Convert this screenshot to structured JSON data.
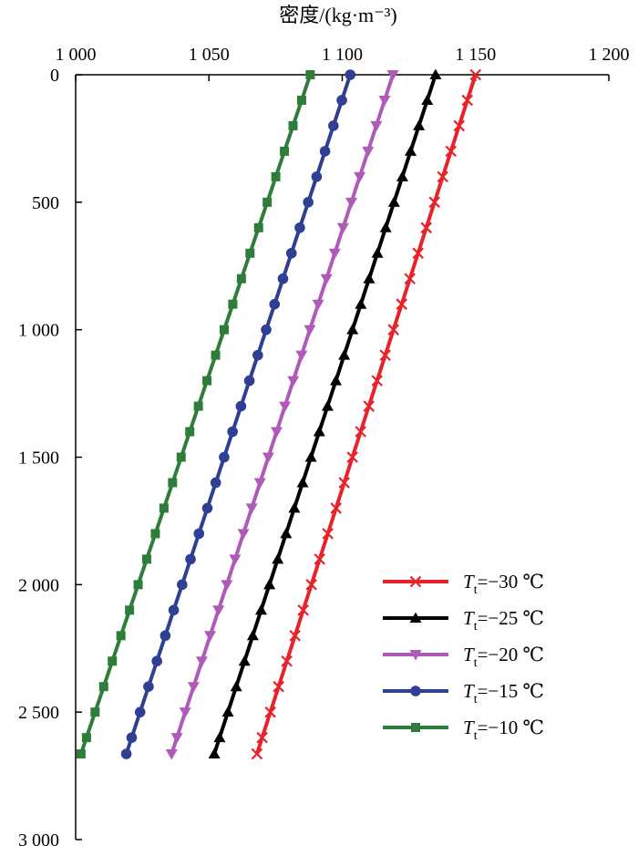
{
  "chart_data": {
    "type": "line",
    "title": "",
    "xlabel": "密度/(kg·m⁻³)",
    "ylabel": "",
    "x_axis_position": "top",
    "y_axis_inverted": true,
    "xlim": [
      1000,
      1200
    ],
    "ylim": [
      0,
      3000
    ],
    "x_ticks": [
      1000,
      1050,
      1100,
      1150,
      1200
    ],
    "x_tick_labels": [
      "1 000",
      "1 050",
      "1 100",
      "1 150",
      "1 200"
    ],
    "y_ticks": [
      0,
      500,
      1000,
      1500,
      2000,
      2500,
      3000
    ],
    "y_tick_labels": [
      "0",
      "500",
      "1 000",
      "1 500",
      "2 000",
      "2 500",
      "3 000"
    ],
    "grid": false,
    "legend_position": "bottom-right",
    "y_samples": [
      0,
      100,
      200,
      300,
      400,
      500,
      600,
      700,
      800,
      900,
      1000,
      1100,
      1200,
      1300,
      1400,
      1500,
      1600,
      1700,
      1800,
      1900,
      2000,
      2100,
      2200,
      2300,
      2400,
      2500,
      2600,
      2664
    ],
    "series": [
      {
        "name": "Tt=−30 ℃",
        "name_main": "T",
        "name_sub": "t",
        "name_rest": "=−30 ℃",
        "color": "#e8222a",
        "marker": "x",
        "x_top": 1150,
        "x_bottom": 1068
      },
      {
        "name": "Tt=−25 ℃",
        "name_main": "T",
        "name_sub": "t",
        "name_rest": "=−25 ℃",
        "color": "#000000",
        "marker": "triangle-up",
        "x_top": 1135,
        "x_bottom": 1052
      },
      {
        "name": "Tt=−20 ℃",
        "name_main": "T",
        "name_sub": "t",
        "name_rest": "=−20 ℃",
        "color": "#b05ab8",
        "marker": "triangle-down",
        "x_top": 1119,
        "x_bottom": 1036
      },
      {
        "name": "Tt=−15 ℃",
        "name_main": "T",
        "name_sub": "t",
        "name_rest": "=−15 ℃",
        "color": "#2e3f94",
        "marker": "circle",
        "x_top": 1103,
        "x_bottom": 1019
      },
      {
        "name": "Tt=−10 ℃",
        "name_main": "T",
        "name_sub": "t",
        "name_rest": "=−10 ℃",
        "color": "#2e7d3a",
        "marker": "square",
        "x_top": 1088,
        "x_bottom": 1002
      }
    ]
  }
}
